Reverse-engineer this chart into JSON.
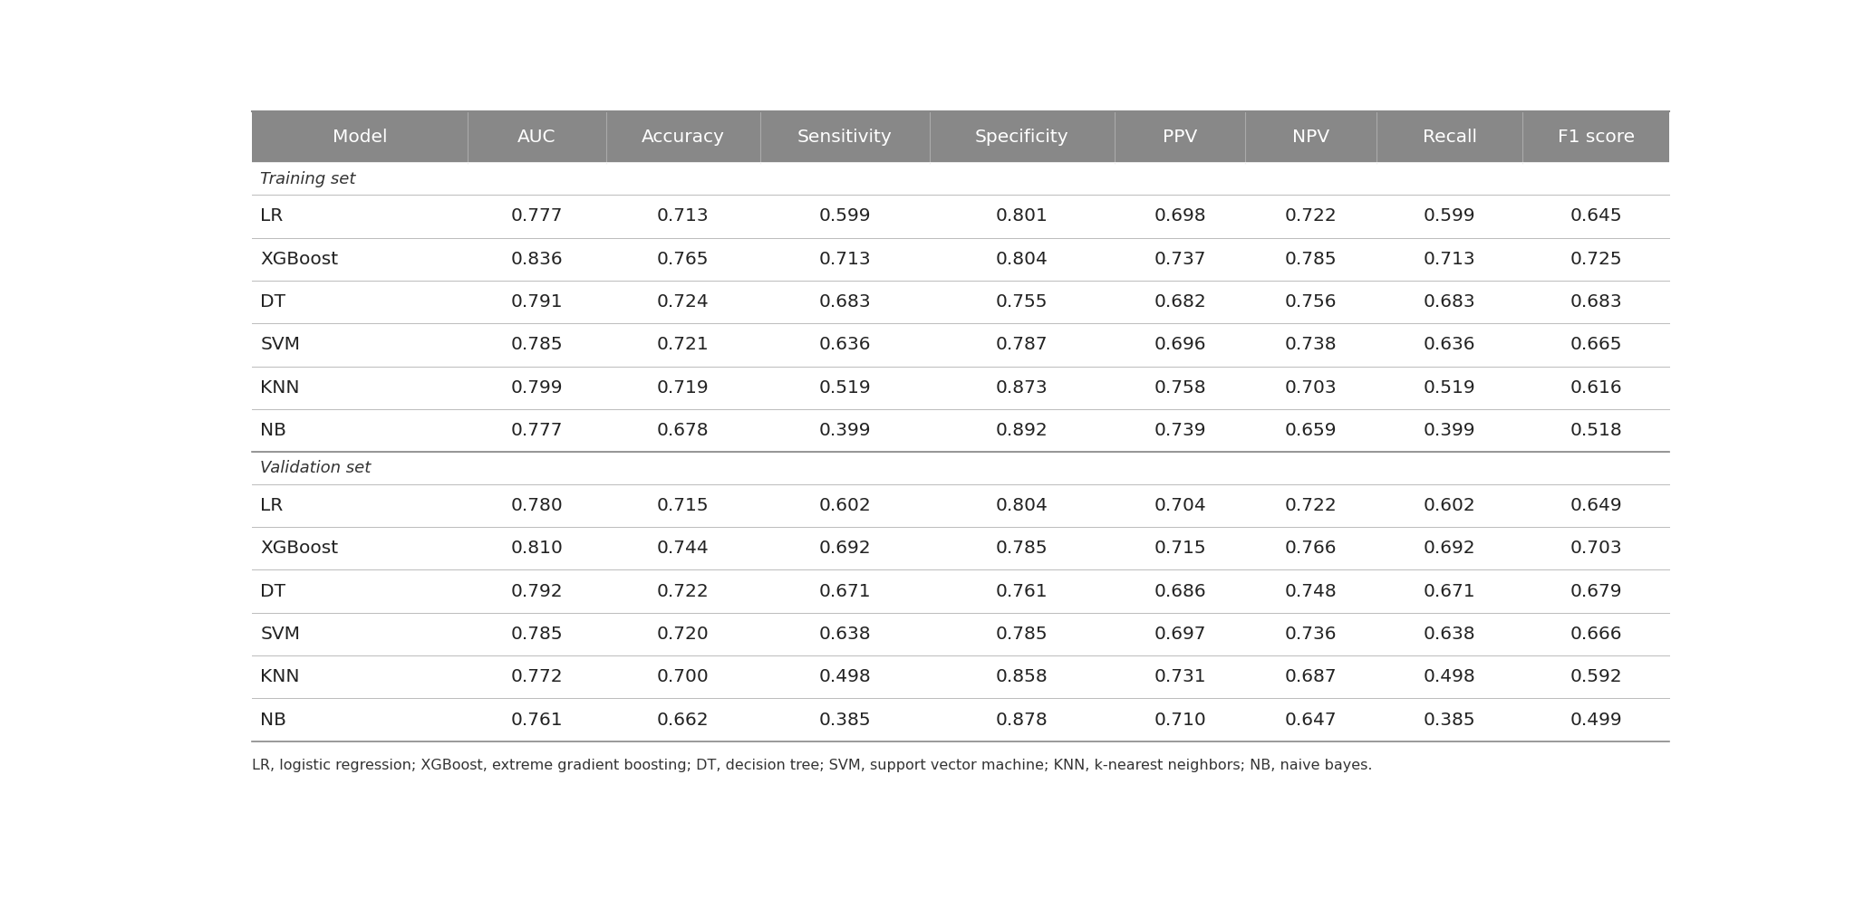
{
  "columns": [
    "Model",
    "AUC",
    "Accuracy",
    "Sensitivity",
    "Specificity",
    "PPV",
    "NPV",
    "Recall",
    "F1 score"
  ],
  "header_bg": "#888888",
  "header_fg": "#ffffff",
  "rows": [
    [
      "LR",
      "0.777",
      "0.713",
      "0.599",
      "0.801",
      "0.698",
      "0.722",
      "0.599",
      "0.645"
    ],
    [
      "XGBoost",
      "0.836",
      "0.765",
      "0.713",
      "0.804",
      "0.737",
      "0.785",
      "0.713",
      "0.725"
    ],
    [
      "DT",
      "0.791",
      "0.724",
      "0.683",
      "0.755",
      "0.682",
      "0.756",
      "0.683",
      "0.683"
    ],
    [
      "SVM",
      "0.785",
      "0.721",
      "0.636",
      "0.787",
      "0.696",
      "0.738",
      "0.636",
      "0.665"
    ],
    [
      "KNN",
      "0.799",
      "0.719",
      "0.519",
      "0.873",
      "0.758",
      "0.703",
      "0.519",
      "0.616"
    ],
    [
      "NB",
      "0.777",
      "0.678",
      "0.399",
      "0.892",
      "0.739",
      "0.659",
      "0.399",
      "0.518"
    ],
    [
      "LR",
      "0.780",
      "0.715",
      "0.602",
      "0.804",
      "0.704",
      "0.722",
      "0.602",
      "0.649"
    ],
    [
      "XGBoost",
      "0.810",
      "0.744",
      "0.692",
      "0.785",
      "0.715",
      "0.766",
      "0.692",
      "0.703"
    ],
    [
      "DT",
      "0.792",
      "0.722",
      "0.671",
      "0.761",
      "0.686",
      "0.748",
      "0.671",
      "0.679"
    ],
    [
      "SVM",
      "0.785",
      "0.720",
      "0.638",
      "0.785",
      "0.697",
      "0.736",
      "0.638",
      "0.666"
    ],
    [
      "KNN",
      "0.772",
      "0.700",
      "0.498",
      "0.858",
      "0.731",
      "0.687",
      "0.498",
      "0.592"
    ],
    [
      "NB",
      "0.761",
      "0.662",
      "0.385",
      "0.878",
      "0.710",
      "0.647",
      "0.385",
      "0.499"
    ]
  ],
  "footnote": "LR, logistic regression; XGBoost, extreme gradient boosting; DT, decision tree; SVM, support vector machine; KNN, k-nearest neighbors; NB, naive bayes.",
  "col_widths_rel": [
    1.4,
    0.9,
    1.0,
    1.1,
    1.2,
    0.85,
    0.85,
    0.95,
    0.95
  ],
  "background_color": "#ffffff",
  "row_line_color": "#bbbbbb",
  "header_divider_color": "#aaaaaa",
  "section_line_color": "#888888",
  "bottom_line_color": "#888888",
  "data_font_size": 14.5,
  "header_font_size": 14.5,
  "section_font_size": 13,
  "footnote_font_size": 11.5
}
